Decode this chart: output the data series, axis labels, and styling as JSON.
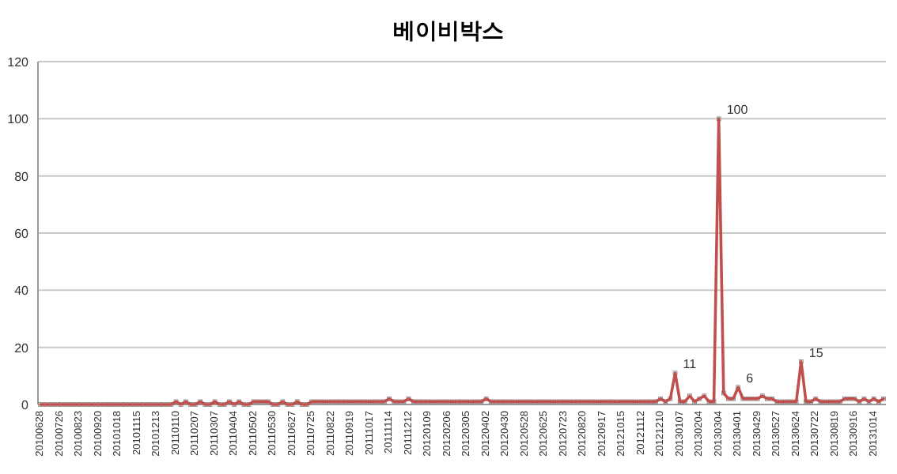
{
  "chart_data": {
    "type": "line",
    "title": "베이비박스",
    "categories": [
      "20100628",
      null,
      null,
      null,
      "20100726",
      null,
      null,
      null,
      "20100823",
      null,
      null,
      null,
      "20100920",
      null,
      null,
      null,
      "20101018",
      null,
      null,
      null,
      "20101115",
      null,
      null,
      null,
      "20101213",
      null,
      null,
      null,
      "20110110",
      null,
      null,
      null,
      "20110207",
      null,
      null,
      null,
      "20110307",
      null,
      null,
      null,
      "20110404",
      null,
      null,
      null,
      "20110502",
      null,
      null,
      null,
      "20110530",
      null,
      null,
      null,
      "20110627",
      null,
      null,
      null,
      "20110725",
      null,
      null,
      null,
      "20110822",
      null,
      null,
      null,
      "20110919",
      null,
      null,
      null,
      "20111017",
      null,
      null,
      null,
      "20111114",
      null,
      null,
      null,
      "20111212",
      null,
      null,
      null,
      "20120109",
      null,
      null,
      null,
      "20120206",
      null,
      null,
      null,
      "20120305",
      null,
      null,
      null,
      "20120402",
      null,
      null,
      null,
      "20120430",
      null,
      null,
      null,
      "20120528",
      null,
      null,
      null,
      "20120625",
      null,
      null,
      null,
      "20120723",
      null,
      null,
      null,
      "20120820",
      null,
      null,
      null,
      "20120917",
      null,
      null,
      null,
      "20121015",
      null,
      null,
      null,
      "20121112",
      null,
      null,
      null,
      "20121210",
      null,
      null,
      null,
      "20130107",
      null,
      null,
      null,
      "20130204",
      null,
      null,
      null,
      "20130304",
      null,
      null,
      null,
      "20130401",
      null,
      null,
      null,
      "20130429",
      null,
      null,
      null,
      "20130527",
      null,
      null,
      null,
      "20130624",
      null,
      null,
      null,
      "20130722",
      null,
      null,
      null,
      "20130819",
      null,
      null,
      null,
      "20130916",
      null,
      null,
      null,
      "20131014",
      null,
      null
    ],
    "series": [
      {
        "color": "#c0504d",
        "values": [
          0,
          0,
          0,
          0,
          0,
          0,
          0,
          0,
          0,
          0,
          0,
          0,
          0,
          0,
          0,
          0,
          0,
          0,
          0,
          0,
          0,
          0,
          0,
          0,
          0,
          0,
          0,
          0,
          1,
          0,
          1,
          0,
          0,
          1,
          0,
          0,
          1,
          0,
          0,
          1,
          0,
          1,
          0,
          0,
          1,
          1,
          1,
          1,
          0,
          0,
          1,
          0,
          0,
          1,
          0,
          0,
          1,
          1,
          1,
          1,
          1,
          1,
          1,
          1,
          1,
          1,
          1,
          1,
          1,
          1,
          1,
          1,
          2,
          1,
          1,
          1,
          2,
          1,
          1,
          1,
          1,
          1,
          1,
          1,
          1,
          1,
          1,
          1,
          1,
          1,
          1,
          1,
          2,
          1,
          1,
          1,
          1,
          1,
          1,
          1,
          1,
          1,
          1,
          1,
          1,
          1,
          1,
          1,
          1,
          1,
          1,
          1,
          1,
          1,
          1,
          1,
          1,
          1,
          1,
          1,
          1,
          1,
          1,
          1,
          1,
          1,
          1,
          1,
          2,
          1,
          2,
          11,
          1,
          1,
          3,
          1,
          2,
          3,
          1,
          1,
          100,
          4,
          2,
          2,
          6,
          2,
          2,
          2,
          2,
          3,
          2,
          2,
          1,
          1,
          1,
          1,
          1,
          15,
          1,
          1,
          2,
          1,
          1,
          1,
          1,
          1,
          2,
          2,
          2,
          1,
          2,
          1,
          2,
          1,
          2
        ],
        "value_labels": [
          null,
          null,
          null,
          null,
          null,
          null,
          null,
          null,
          null,
          null,
          null,
          null,
          null,
          null,
          null,
          null,
          null,
          null,
          null,
          null,
          null,
          null,
          null,
          null,
          null,
          null,
          null,
          null,
          null,
          null,
          null,
          null,
          null,
          null,
          null,
          null,
          null,
          null,
          null,
          null,
          null,
          null,
          null,
          null,
          null,
          null,
          null,
          null,
          null,
          null,
          null,
          null,
          null,
          null,
          null,
          null,
          null,
          null,
          null,
          null,
          null,
          null,
          null,
          null,
          null,
          null,
          null,
          null,
          null,
          null,
          null,
          null,
          null,
          null,
          null,
          null,
          null,
          null,
          null,
          null,
          null,
          null,
          null,
          null,
          null,
          null,
          null,
          null,
          null,
          null,
          null,
          null,
          null,
          null,
          null,
          null,
          null,
          null,
          null,
          null,
          null,
          null,
          null,
          null,
          null,
          null,
          null,
          null,
          null,
          null,
          null,
          null,
          null,
          null,
          null,
          null,
          null,
          null,
          null,
          null,
          null,
          null,
          null,
          null,
          null,
          null,
          null,
          null,
          null,
          null,
          null,
          "11",
          null,
          null,
          null,
          null,
          null,
          null,
          null,
          null,
          "100",
          null,
          null,
          null,
          "6",
          null,
          null,
          null,
          null,
          null,
          null,
          null,
          null,
          null,
          null,
          null,
          null,
          "15",
          null,
          null,
          null,
          null,
          null,
          null,
          null,
          null,
          null,
          null,
          null,
          null,
          null,
          null,
          null,
          null,
          null
        ]
      }
    ],
    "ylim": [
      0,
      120
    ],
    "yticks": [
      0,
      20,
      40,
      60,
      80,
      100,
      120
    ],
    "grid": "y",
    "marker": "square",
    "line_style": "solid"
  }
}
